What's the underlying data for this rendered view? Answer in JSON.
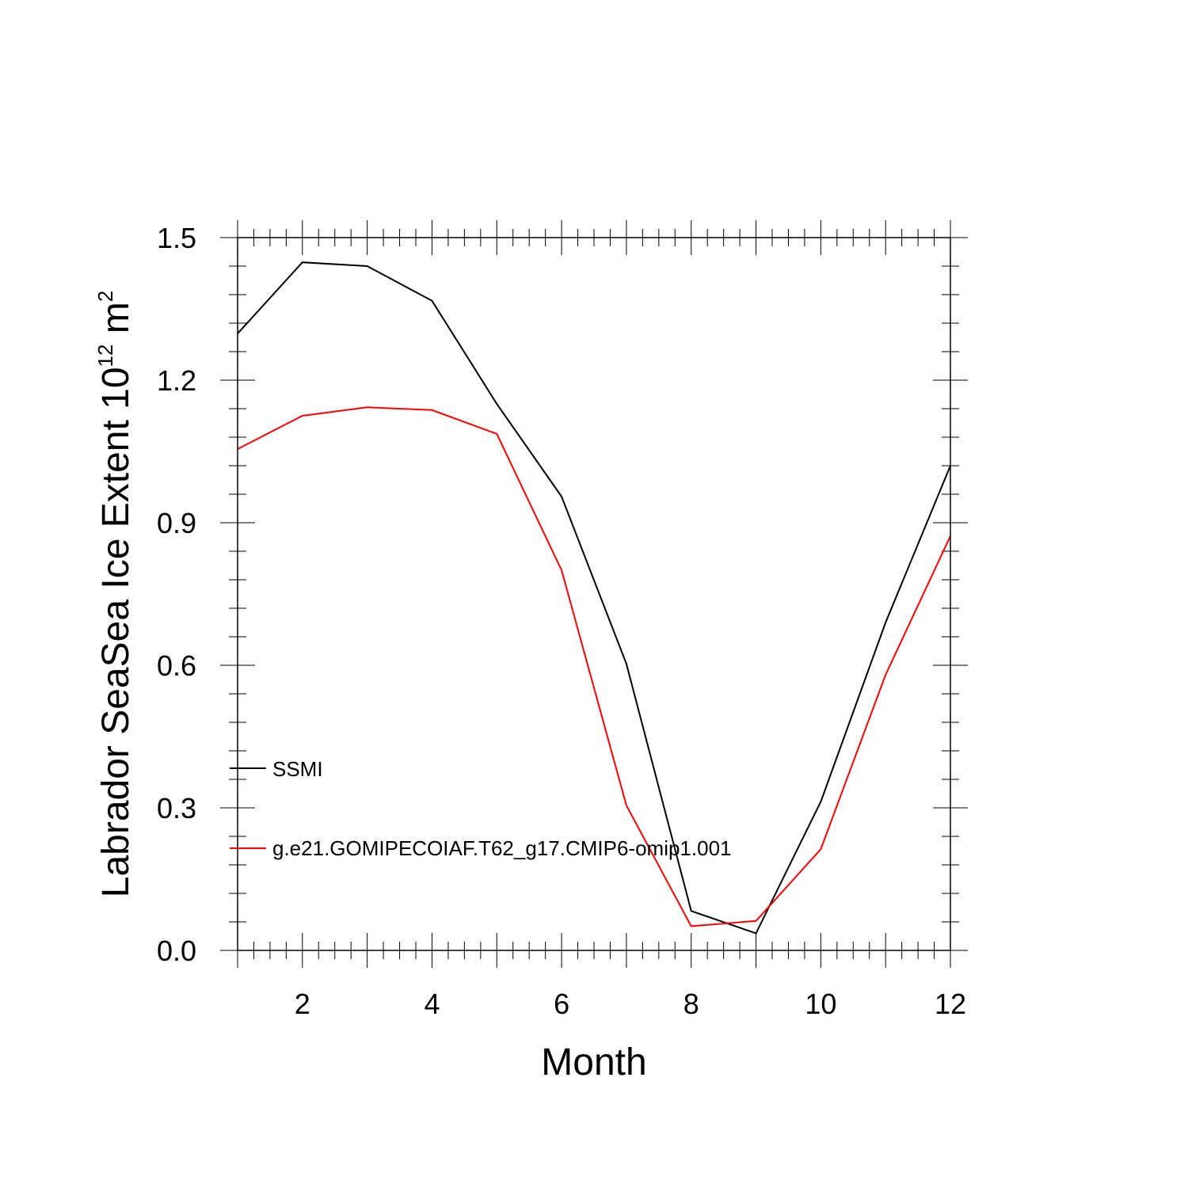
{
  "chart_data": {
    "type": "line",
    "title": "",
    "xlabel": "Month",
    "ylabel": {
      "prefix": "Labrador SeaSea Ice Extent 10",
      "exponent": "12",
      "unit_base": " m",
      "unit_exponent": "2"
    },
    "xlim": [
      1,
      12
    ],
    "ylim": [
      0,
      1.5
    ],
    "xticks": [
      2,
      4,
      6,
      8,
      10,
      12
    ],
    "yticks": [
      "0.0",
      "0.3",
      "0.6",
      "0.9",
      "1.2",
      "1.5"
    ],
    "grid": false,
    "legend_position": "lower-left",
    "x": [
      1,
      2,
      3,
      4,
      5,
      6,
      7,
      8,
      9,
      10,
      11,
      12
    ],
    "series": [
      {
        "name": "SSMI",
        "color": "#000000",
        "values": [
          1.298,
          1.448,
          1.44,
          1.367,
          1.15,
          0.955,
          0.603,
          0.083,
          0.036,
          0.313,
          0.69,
          1.02
        ]
      },
      {
        "name": "g.e21.GOMIPECOIAF.T62_g17.CMIP6-omip1.001",
        "color": "#ff0000",
        "values": [
          1.055,
          1.125,
          1.143,
          1.137,
          1.087,
          0.8,
          0.305,
          0.051,
          0.062,
          0.213,
          0.58,
          0.872
        ]
      }
    ]
  }
}
